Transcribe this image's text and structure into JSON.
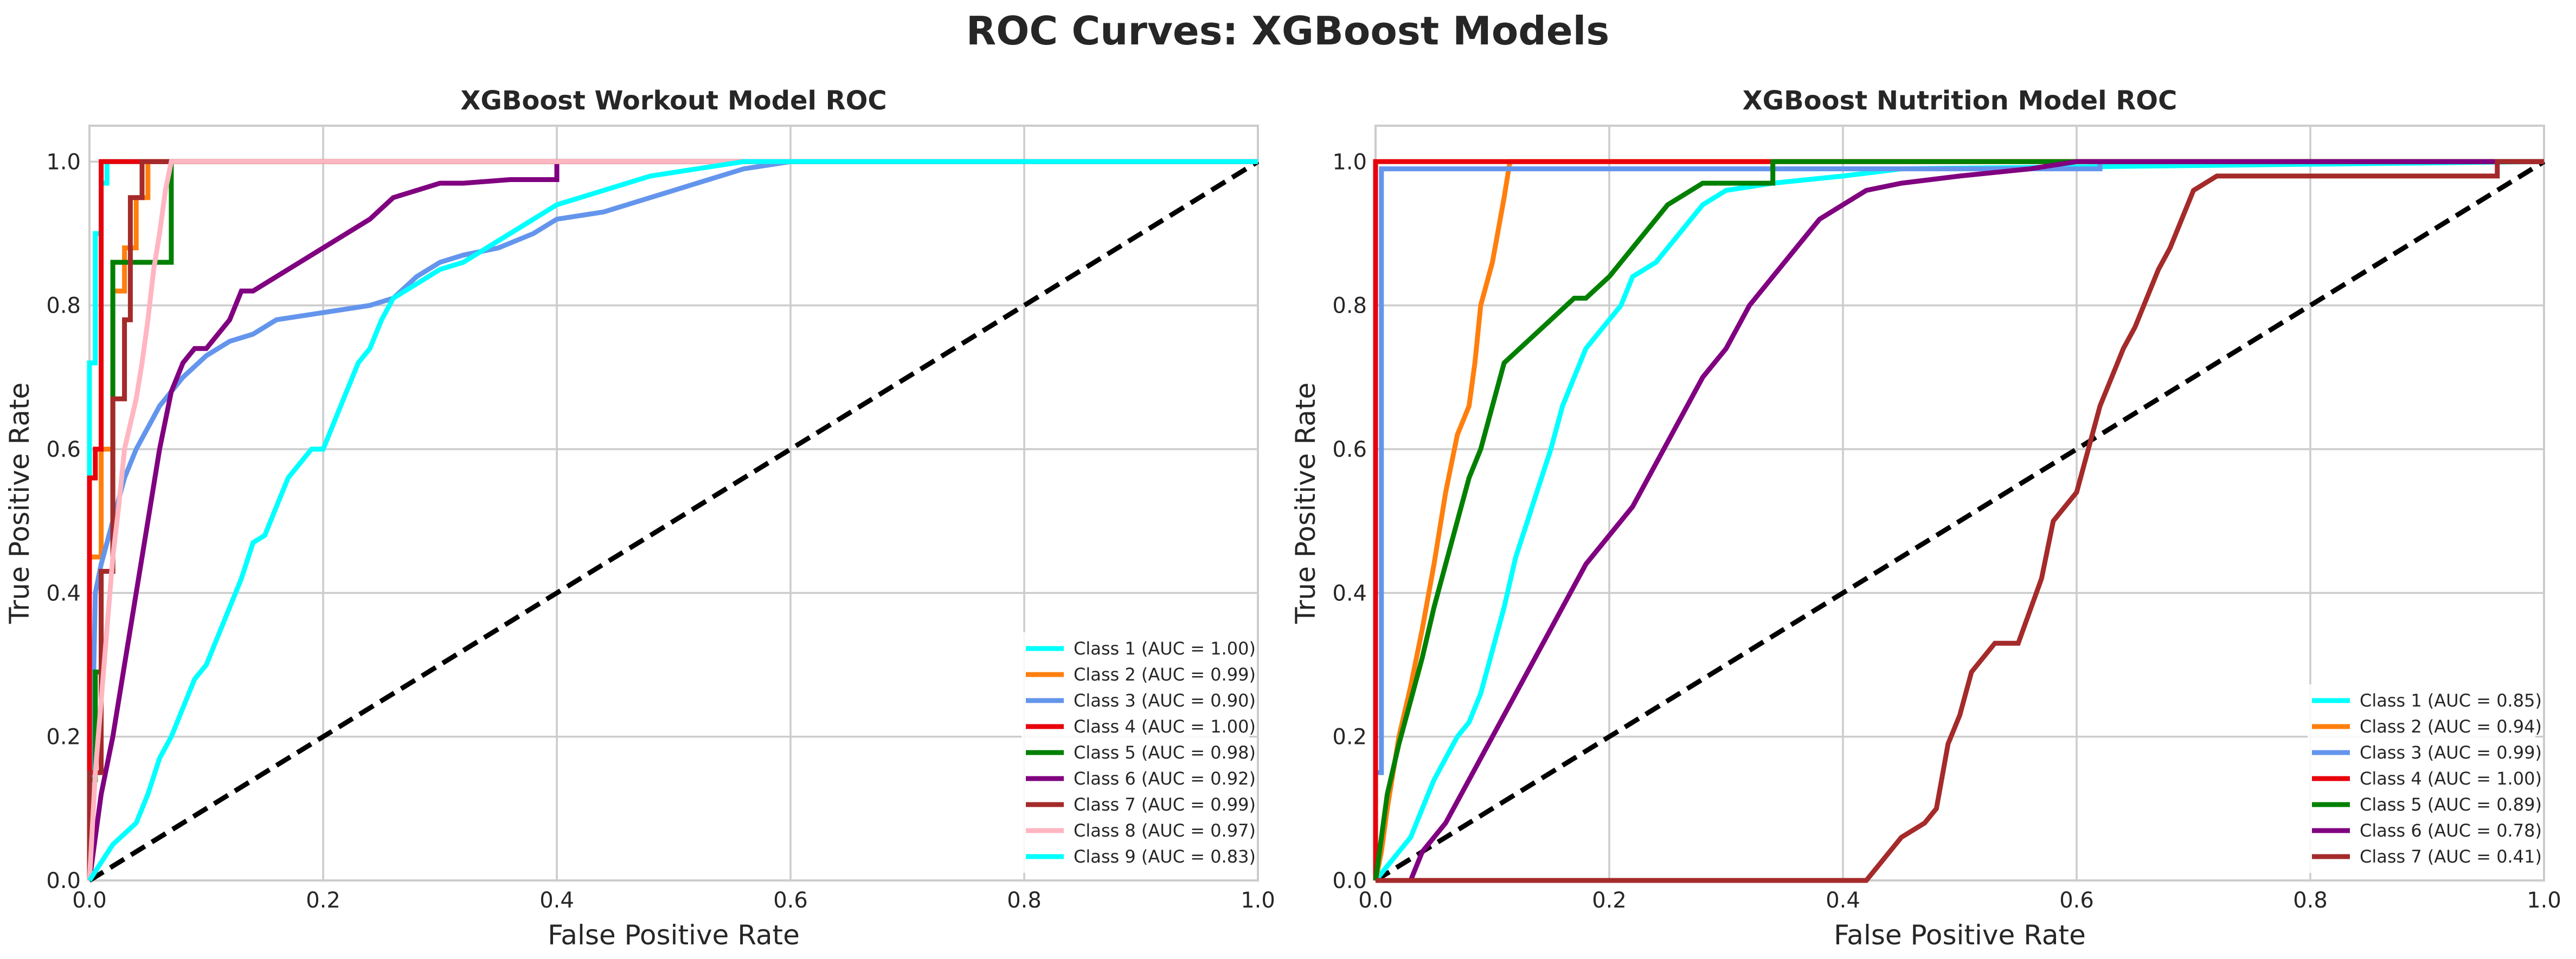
{
  "figure": {
    "suptitle": "ROC Curves: XGBoost Models"
  },
  "chart_data": [
    {
      "type": "line",
      "title": "XGBoost Workout Model ROC",
      "xlabel": "False Positive Rate",
      "ylabel": "True Positive Rate",
      "xlim": [
        0,
        1
      ],
      "ylim": [
        0,
        1.05
      ],
      "xticks": [
        "0.0",
        "0.2",
        "0.4",
        "0.6",
        "0.8",
        "1.0"
      ],
      "yticks": [
        "0.0",
        "0.2",
        "0.4",
        "0.6",
        "0.8",
        "1.0"
      ],
      "grid": true,
      "legend_position": "lower-right",
      "reference_line": {
        "x": [
          0,
          1
        ],
        "y": [
          0,
          1
        ],
        "style": "dashed",
        "color": "#000000"
      },
      "series": [
        {
          "name": "Class 1 (AUC = 1.00)",
          "color": "#00ffff",
          "x": [
            0,
            0,
            0.005,
            0.005,
            0.01,
            0.01,
            0.015,
            0.015,
            1.0
          ],
          "y": [
            0,
            0.72,
            0.72,
            0.9,
            0.9,
            0.97,
            0.97,
            1.0,
            1.0
          ]
        },
        {
          "name": "Class 2 (AUC = 0.99)",
          "color": "#ff7f0e",
          "x": [
            0,
            0,
            0.01,
            0.01,
            0.02,
            0.02,
            0.03,
            0.03,
            0.04,
            0.04,
            0.05,
            0.05,
            1.0
          ],
          "y": [
            0,
            0.45,
            0.45,
            0.6,
            0.6,
            0.82,
            0.82,
            0.88,
            0.88,
            0.95,
            0.95,
            1.0,
            1.0
          ]
        },
        {
          "name": "Class 3 (AUC = 0.90)",
          "color": "#6495ed",
          "x": [
            0,
            0.005,
            0.01,
            0.02,
            0.03,
            0.04,
            0.05,
            0.06,
            0.08,
            0.1,
            0.12,
            0.14,
            0.16,
            0.2,
            0.24,
            0.26,
            0.28,
            0.3,
            0.32,
            0.35,
            0.38,
            0.4,
            0.44,
            0.48,
            0.5,
            0.52,
            0.56,
            0.6,
            1.0
          ],
          "y": [
            0,
            0.4,
            0.44,
            0.5,
            0.56,
            0.6,
            0.63,
            0.66,
            0.7,
            0.73,
            0.75,
            0.76,
            0.78,
            0.79,
            0.8,
            0.81,
            0.84,
            0.86,
            0.87,
            0.88,
            0.9,
            0.92,
            0.93,
            0.95,
            0.96,
            0.97,
            0.99,
            1.0,
            1.0
          ]
        },
        {
          "name": "Class 4 (AUC = 1.00)",
          "color": "#e8000b",
          "x": [
            0,
            0,
            0.005,
            0.005,
            0.01,
            0.01,
            1.0
          ],
          "y": [
            0,
            0.56,
            0.56,
            0.6,
            0.6,
            1.0,
            1.0
          ]
        },
        {
          "name": "Class 5 (AUC = 0.98)",
          "color": "#008000",
          "x": [
            0,
            0,
            0.005,
            0.005,
            0.01,
            0.01,
            0.02,
            0.02,
            0.04,
            0.04,
            0.07,
            0.07,
            1.0
          ],
          "y": [
            0,
            0.14,
            0.14,
            0.29,
            0.29,
            0.43,
            0.43,
            0.86,
            0.86,
            0.86,
            0.86,
            1.0,
            1.0
          ]
        },
        {
          "name": "Class 6 (AUC = 0.92)",
          "color": "#800080",
          "x": [
            0,
            0.01,
            0.02,
            0.03,
            0.04,
            0.05,
            0.06,
            0.07,
            0.08,
            0.09,
            0.1,
            0.12,
            0.13,
            0.14,
            0.16,
            0.18,
            0.2,
            0.22,
            0.24,
            0.26,
            0.28,
            0.3,
            0.32,
            0.36,
            0.4,
            0.4,
            1.0
          ],
          "y": [
            0,
            0.12,
            0.2,
            0.3,
            0.4,
            0.5,
            0.6,
            0.68,
            0.72,
            0.74,
            0.74,
            0.78,
            0.82,
            0.82,
            0.84,
            0.86,
            0.88,
            0.9,
            0.92,
            0.95,
            0.96,
            0.97,
            0.97,
            0.975,
            0.975,
            1.0,
            1.0
          ]
        },
        {
          "name": "Class 7 (AUC = 0.99)",
          "color": "#a52a2a",
          "x": [
            0,
            0,
            0.01,
            0.01,
            0.02,
            0.02,
            0.03,
            0.03,
            0.035,
            0.035,
            0.045,
            0.045,
            1.0
          ],
          "y": [
            0,
            0.15,
            0.15,
            0.43,
            0.43,
            0.67,
            0.67,
            0.78,
            0.78,
            0.95,
            0.95,
            1.0,
            1.0
          ]
        },
        {
          "name": "Class 8 (AUC = 0.97)",
          "color": "#ffb6c1",
          "x": [
            0,
            0.005,
            0.01,
            0.015,
            0.02,
            0.025,
            0.03,
            0.04,
            0.045,
            0.05,
            0.055,
            0.06,
            0.065,
            0.07,
            1.0
          ],
          "y": [
            0,
            0.15,
            0.25,
            0.35,
            0.45,
            0.52,
            0.6,
            0.67,
            0.72,
            0.78,
            0.85,
            0.9,
            0.96,
            1.0,
            1.0
          ]
        },
        {
          "name": "Class 9 (AUC = 0.83)",
          "color": "#00ffff",
          "x": [
            0,
            0.02,
            0.04,
            0.05,
            0.06,
            0.07,
            0.08,
            0.09,
            0.1,
            0.11,
            0.12,
            0.13,
            0.14,
            0.15,
            0.16,
            0.17,
            0.18,
            0.19,
            0.2,
            0.21,
            0.22,
            0.23,
            0.24,
            0.25,
            0.26,
            0.28,
            0.3,
            0.32,
            0.34,
            0.36,
            0.38,
            0.4,
            0.44,
            0.48,
            0.52,
            0.56,
            1.0
          ],
          "y": [
            0,
            0.05,
            0.08,
            0.12,
            0.17,
            0.2,
            0.24,
            0.28,
            0.3,
            0.34,
            0.38,
            0.42,
            0.47,
            0.48,
            0.52,
            0.56,
            0.58,
            0.6,
            0.6,
            0.64,
            0.68,
            0.72,
            0.74,
            0.78,
            0.81,
            0.83,
            0.85,
            0.86,
            0.88,
            0.9,
            0.92,
            0.94,
            0.96,
            0.98,
            0.99,
            1.0,
            1.0
          ]
        }
      ]
    },
    {
      "type": "line",
      "title": "XGBoost Nutrition Model ROC",
      "xlabel": "False Positive Rate",
      "ylabel": "True Positive Rate",
      "xlim": [
        0,
        1
      ],
      "ylim": [
        0,
        1.05
      ],
      "xticks": [
        "0.0",
        "0.2",
        "0.4",
        "0.6",
        "0.8",
        "1.0"
      ],
      "yticks": [
        "0.0",
        "0.2",
        "0.4",
        "0.6",
        "0.8",
        "1.0"
      ],
      "grid": true,
      "legend_position": "lower-right",
      "reference_line": {
        "x": [
          0,
          1
        ],
        "y": [
          0,
          1
        ],
        "style": "dashed",
        "color": "#000000"
      },
      "series": [
        {
          "name": "Class 1 (AUC = 0.85)",
          "color": "#00ffff",
          "x": [
            0,
            0.01,
            0.02,
            0.03,
            0.04,
            0.05,
            0.06,
            0.07,
            0.08,
            0.09,
            0.1,
            0.11,
            0.12,
            0.13,
            0.14,
            0.15,
            0.16,
            0.17,
            0.18,
            0.19,
            0.2,
            0.21,
            0.22,
            0.24,
            0.26,
            0.28,
            0.3,
            0.34,
            0.4,
            0.45,
            1.0
          ],
          "y": [
            0,
            0.02,
            0.04,
            0.06,
            0.1,
            0.14,
            0.17,
            0.2,
            0.22,
            0.26,
            0.32,
            0.38,
            0.45,
            0.5,
            0.55,
            0.6,
            0.66,
            0.7,
            0.74,
            0.76,
            0.78,
            0.8,
            0.84,
            0.86,
            0.9,
            0.94,
            0.96,
            0.97,
            0.98,
            0.99,
            1.0
          ]
        },
        {
          "name": "Class 2 (AUC = 0.94)",
          "color": "#ff7f0e",
          "x": [
            0,
            0.005,
            0.01,
            0.02,
            0.03,
            0.04,
            0.05,
            0.06,
            0.07,
            0.08,
            0.085,
            0.09,
            0.1,
            0.11,
            0.115,
            1.0
          ],
          "y": [
            0,
            0.04,
            0.1,
            0.2,
            0.27,
            0.35,
            0.44,
            0.54,
            0.62,
            0.66,
            0.72,
            0.8,
            0.86,
            0.95,
            1.0,
            1.0
          ]
        },
        {
          "name": "Class 3 (AUC = 0.99)",
          "color": "#6495ed",
          "x": [
            0,
            0,
            0.005,
            0.005,
            0.62,
            0.62,
            1.0
          ],
          "y": [
            0,
            0.15,
            0.15,
            0.99,
            0.99,
            1.0,
            1.0
          ]
        },
        {
          "name": "Class 4 (AUC = 1.00)",
          "color": "#e8000b",
          "x": [
            0,
            0,
            1.0
          ],
          "y": [
            0,
            1.0,
            1.0
          ]
        },
        {
          "name": "Class 5 (AUC = 0.89)",
          "color": "#008000",
          "x": [
            0,
            0.005,
            0.01,
            0.02,
            0.03,
            0.04,
            0.05,
            0.06,
            0.07,
            0.08,
            0.09,
            0.1,
            0.11,
            0.13,
            0.15,
            0.17,
            0.18,
            0.2,
            0.22,
            0.25,
            0.28,
            0.3,
            0.34,
            0.34,
            1.0
          ],
          "y": [
            0,
            0.06,
            0.12,
            0.19,
            0.25,
            0.31,
            0.38,
            0.44,
            0.5,
            0.56,
            0.6,
            0.66,
            0.72,
            0.75,
            0.78,
            0.81,
            0.81,
            0.84,
            0.88,
            0.94,
            0.97,
            0.97,
            0.97,
            1.0,
            1.0
          ]
        },
        {
          "name": "Class 6 (AUC = 0.78)",
          "color": "#800080",
          "x": [
            0,
            0.03,
            0.04,
            0.06,
            0.08,
            0.1,
            0.12,
            0.14,
            0.16,
            0.18,
            0.2,
            0.22,
            0.24,
            0.26,
            0.28,
            0.3,
            0.32,
            0.34,
            0.36,
            0.38,
            0.4,
            0.42,
            0.45,
            0.5,
            0.56,
            0.6,
            1.0
          ],
          "y": [
            0,
            0,
            0.04,
            0.08,
            0.14,
            0.2,
            0.26,
            0.32,
            0.38,
            0.44,
            0.48,
            0.52,
            0.58,
            0.64,
            0.7,
            0.74,
            0.8,
            0.84,
            0.88,
            0.92,
            0.94,
            0.96,
            0.97,
            0.98,
            0.99,
            1.0,
            1.0
          ]
        },
        {
          "name": "Class 7 (AUC = 0.41)",
          "color": "#a52a2a",
          "x": [
            0,
            0.42,
            0.43,
            0.44,
            0.45,
            0.47,
            0.48,
            0.49,
            0.5,
            0.51,
            0.53,
            0.55,
            0.57,
            0.58,
            0.6,
            0.61,
            0.62,
            0.63,
            0.64,
            0.65,
            0.66,
            0.67,
            0.68,
            0.69,
            0.7,
            0.72,
            0.96,
            0.96,
            1.0
          ],
          "y": [
            0,
            0,
            0.02,
            0.04,
            0.06,
            0.08,
            0.1,
            0.19,
            0.23,
            0.29,
            0.33,
            0.33,
            0.42,
            0.5,
            0.54,
            0.6,
            0.66,
            0.7,
            0.74,
            0.77,
            0.81,
            0.85,
            0.88,
            0.92,
            0.96,
            0.98,
            0.98,
            1.0,
            1.0
          ]
        }
      ]
    }
  ]
}
